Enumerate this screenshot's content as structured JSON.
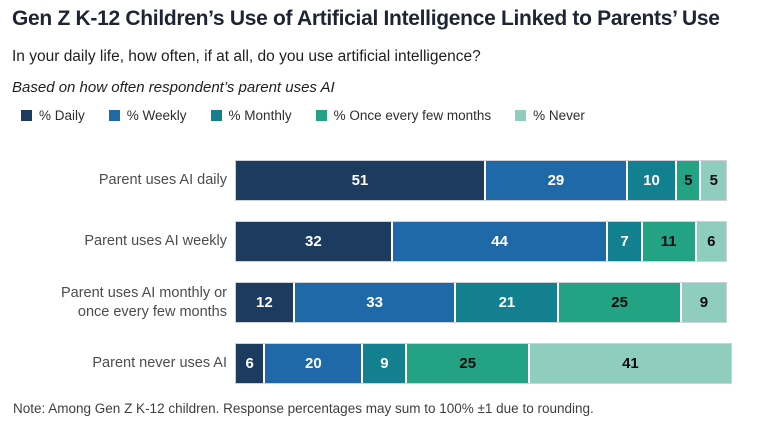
{
  "header": {
    "title": "Gen Z K-12 Children’s Use of Artificial Intelligence Linked to Parents’ Use",
    "question": "In your daily life, how often, if at all, do you use artificial intelligence?",
    "basis": "Based on how often respondent’s parent uses AI"
  },
  "footer": {
    "note": "Note: Among Gen Z K-12 children. Response percentages may sum to 100% ±1 due to rounding."
  },
  "colors": {
    "daily": "#1c3b5f",
    "weekly": "#2069a9",
    "monthly": "#12808e",
    "once_every_few_months": "#23a284",
    "never": "#8fcebf",
    "title_text": "#1d2433",
    "row_label_text": "#4d4d4d",
    "bar_outline": "#ccd1da"
  },
  "chart_data": {
    "type": "bar",
    "orientation": "horizontal",
    "stacked": true,
    "value_unit": "%",
    "x_range": [
      0,
      100
    ],
    "grid": false,
    "legend_position": "top",
    "categories": [
      {
        "label": "Parent uses AI daily",
        "lines": [
          "Parent uses AI daily"
        ]
      },
      {
        "label": "Parent uses AI weekly",
        "lines": [
          "Parent uses AI weekly"
        ]
      },
      {
        "label": "Parent uses AI monthly or once every few months",
        "lines": [
          "Parent uses AI monthly or",
          "once every few months"
        ]
      },
      {
        "label": "Parent never uses AI",
        "lines": [
          "Parent never uses AI"
        ]
      }
    ],
    "series": [
      {
        "name": "% Daily",
        "color": "#1c3b5f",
        "label_color": "#ffffff",
        "values": [
          51,
          32,
          12,
          6
        ]
      },
      {
        "name": "% Weekly",
        "color": "#2069a9",
        "label_color": "#ffffff",
        "values": [
          29,
          44,
          33,
          20
        ]
      },
      {
        "name": "% Monthly",
        "color": "#12808e",
        "label_color": "#ffffff",
        "values": [
          10,
          7,
          21,
          9
        ]
      },
      {
        "name": "% Once every few months",
        "color": "#23a284",
        "label_color": "#0d0d0d",
        "values": [
          5,
          11,
          25,
          25
        ]
      },
      {
        "name": "% Never",
        "color": "#8fcebf",
        "label_color": "#0d0d0d",
        "values": [
          5,
          6,
          9,
          41
        ]
      }
    ]
  }
}
